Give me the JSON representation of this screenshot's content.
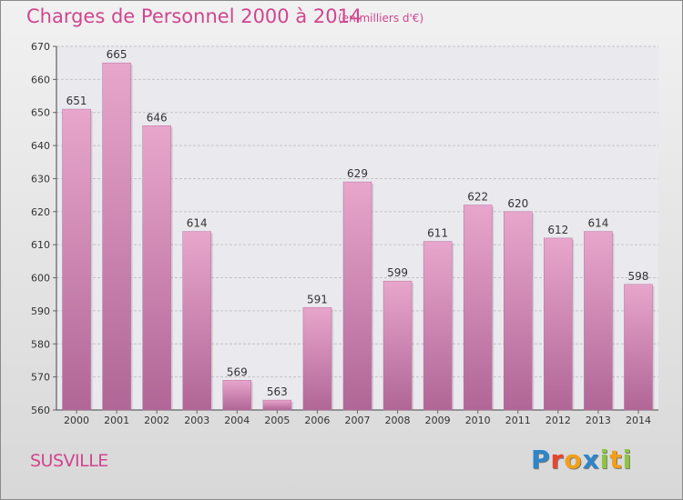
{
  "title": "Charges de Personnel 2000 à 2014",
  "subtitle": "(en milliers d'€)",
  "commune": "SUSVILLE",
  "brand": {
    "letters": [
      {
        "char": "P",
        "color": "#2d86c9"
      },
      {
        "char": "r",
        "color": "#e8452b"
      },
      {
        "char": "o",
        "color": "#f2a019"
      },
      {
        "char": "x",
        "color": "#2d86c9"
      },
      {
        "char": "i",
        "color": "#8dc63f"
      },
      {
        "char": "t",
        "color": "#f2a019"
      },
      {
        "char": "i",
        "color": "#8dc63f"
      }
    ]
  },
  "colors": {
    "title": "#d0458e",
    "bar_light": "#e8a6cc",
    "bar_dark": "#b06696"
  },
  "chart_data": {
    "type": "bar",
    "categories": [
      "2000",
      "2001",
      "2002",
      "2003",
      "2004",
      "2005",
      "2006",
      "2007",
      "2008",
      "2009",
      "2010",
      "2011",
      "2012",
      "2013",
      "2014"
    ],
    "values": [
      651,
      665,
      646,
      614,
      569,
      563,
      591,
      629,
      599,
      611,
      622,
      620,
      612,
      614,
      598
    ],
    "title": "Charges de Personnel 2000 à 2014",
    "ylim": [
      560,
      670
    ],
    "yticks": [
      560,
      570,
      580,
      590,
      600,
      610,
      620,
      630,
      640,
      650,
      660,
      670
    ],
    "grid": true,
    "legend": "none"
  }
}
